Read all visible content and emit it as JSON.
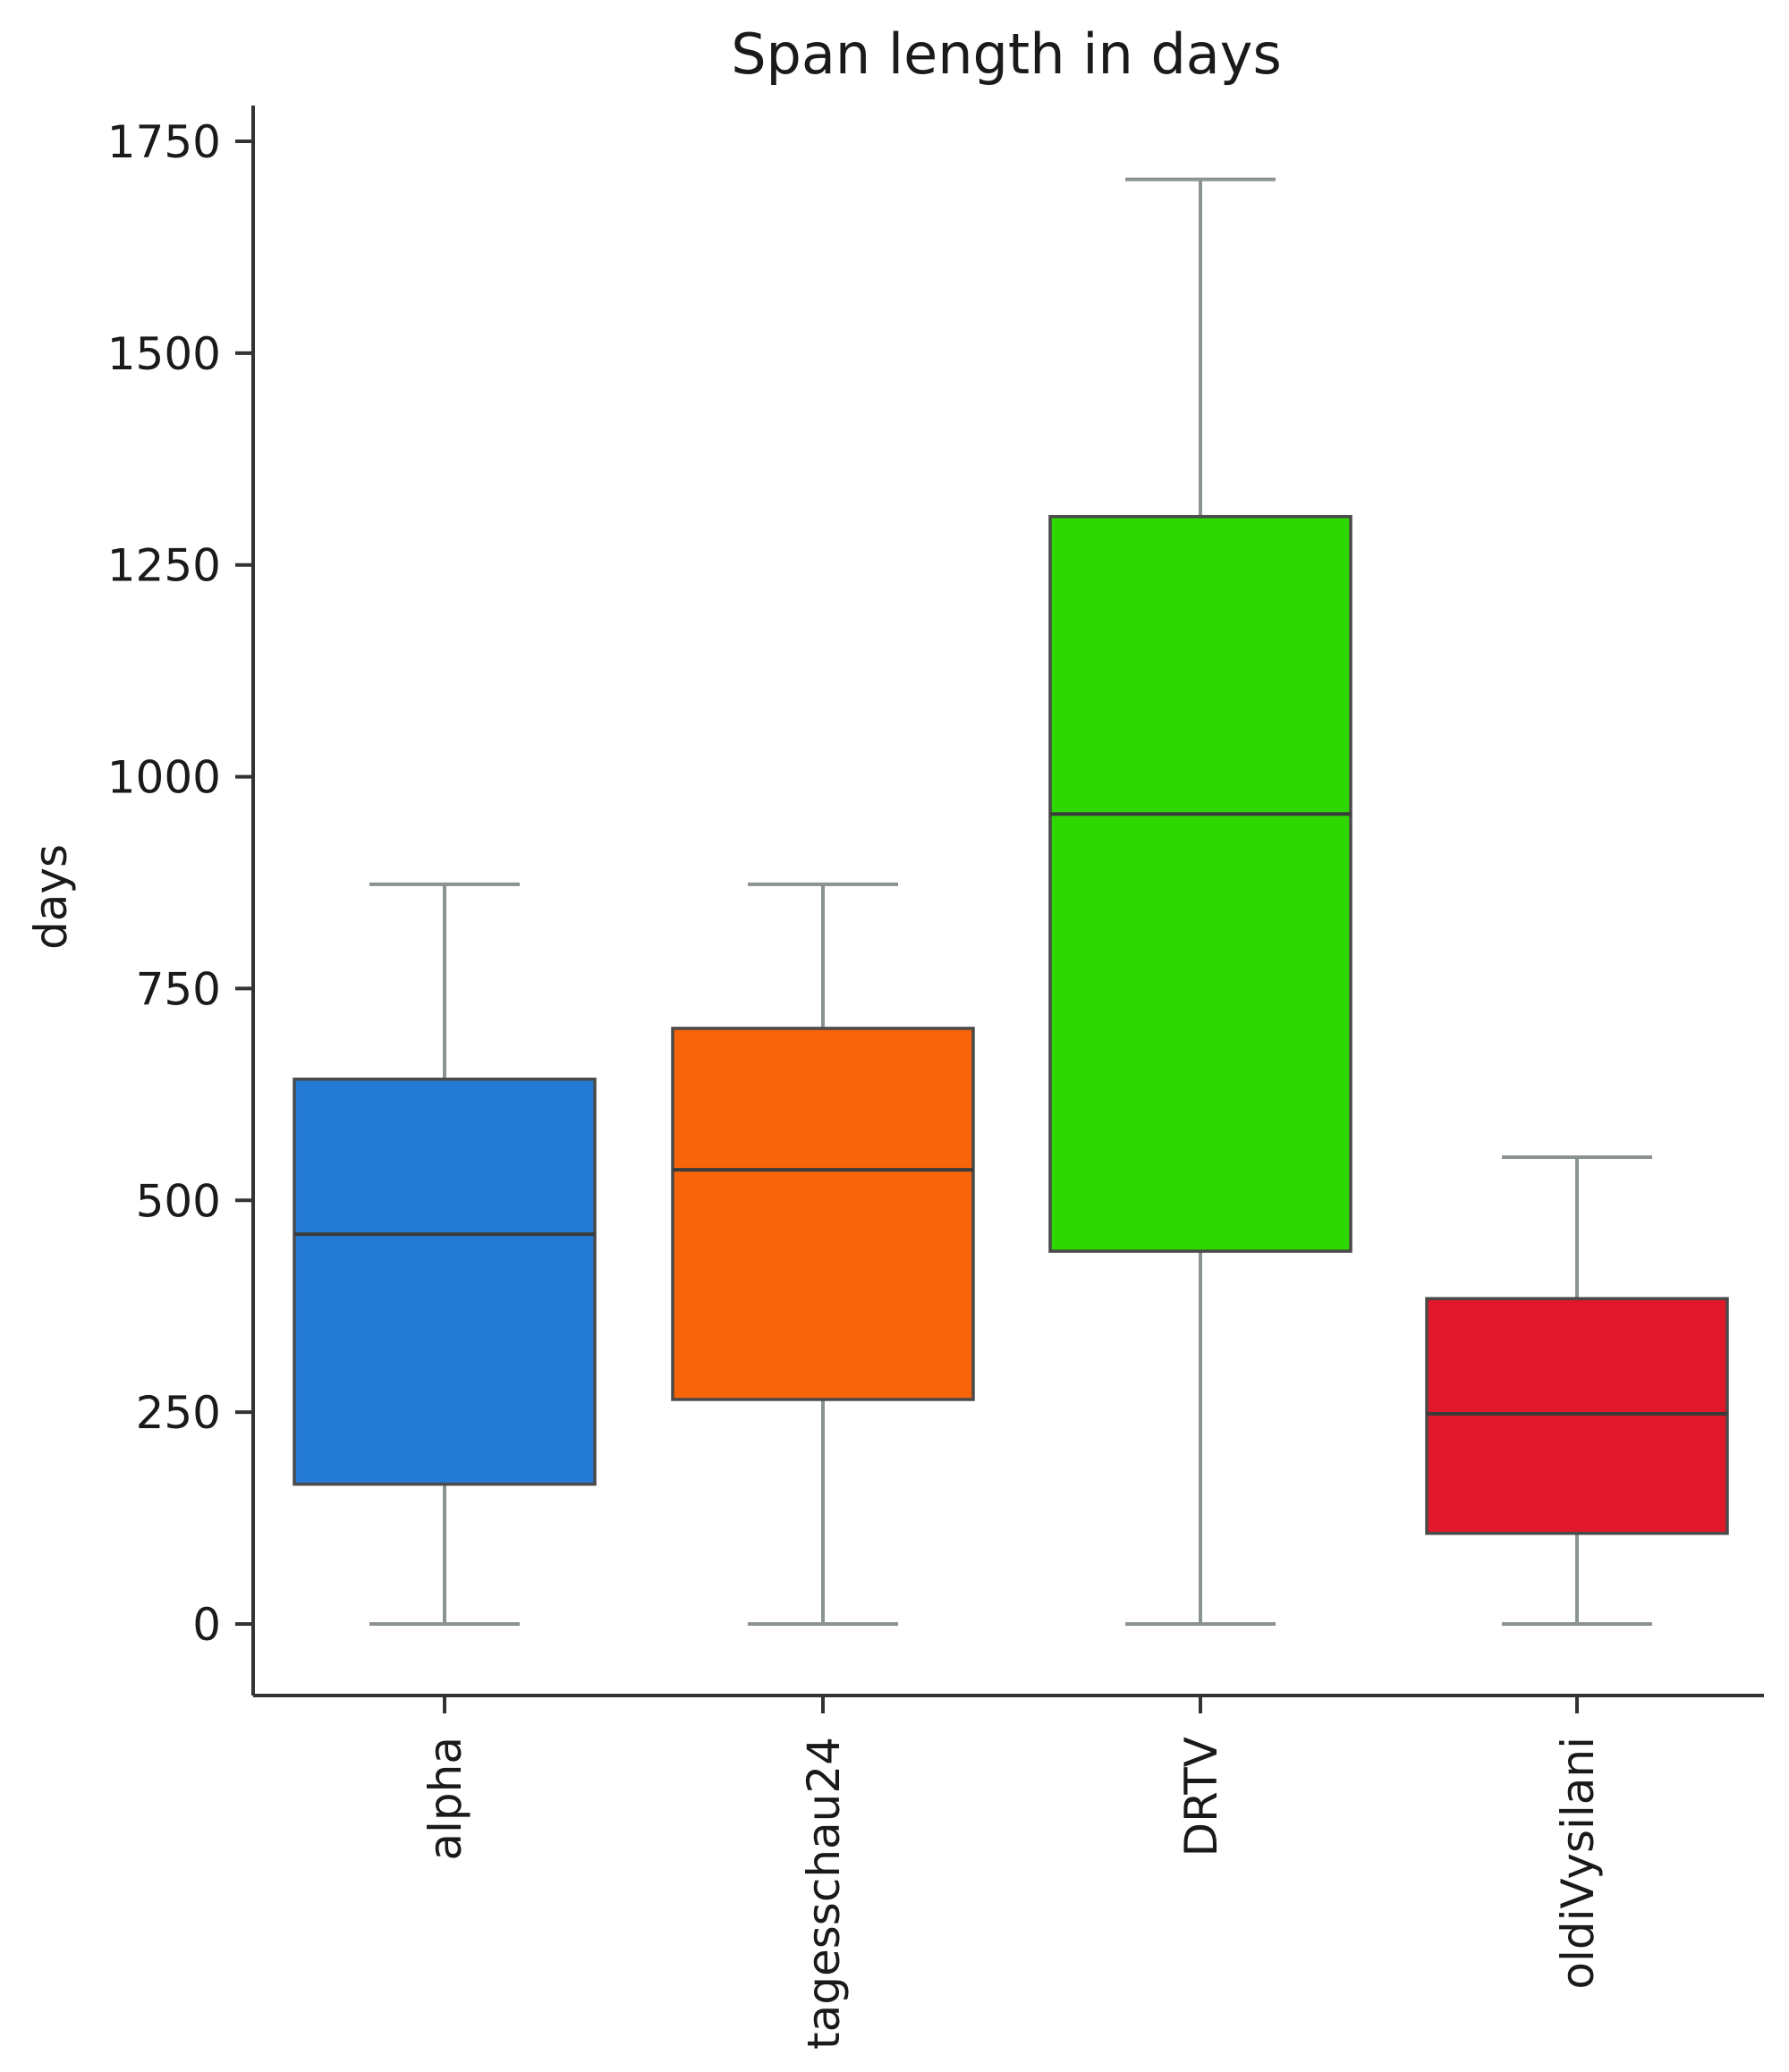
{
  "chart_data": {
    "type": "box",
    "title": "Span length in days",
    "xlabel": "",
    "ylabel": "days",
    "ylim": [
      -85,
      1810
    ],
    "yticks": [
      0,
      250,
      500,
      750,
      1000,
      1250,
      1500,
      1750
    ],
    "grid": false,
    "categories": [
      "alpha",
      "tagesschau24",
      "DRTV",
      "oldiVysilani"
    ],
    "boxes": [
      {
        "category": "alpha",
        "whisker_low": 0,
        "q1": 165,
        "median": 460,
        "q3": 643,
        "whisker_high": 873,
        "color": "#237bd6"
      },
      {
        "category": "tagesschau24",
        "whisker_low": 0,
        "q1": 265,
        "median": 536,
        "q3": 703,
        "whisker_high": 873,
        "color": "#f7640a"
      },
      {
        "category": "DRTV",
        "whisker_low": 0,
        "q1": 440,
        "median": 956,
        "q3": 1307,
        "whisker_high": 1705,
        "color": "#2ed700"
      },
      {
        "category": "oldiVysilani",
        "whisker_low": 0,
        "q1": 107,
        "median": 248,
        "q3": 384,
        "whisker_high": 551,
        "color": "#e1182b"
      }
    ]
  }
}
